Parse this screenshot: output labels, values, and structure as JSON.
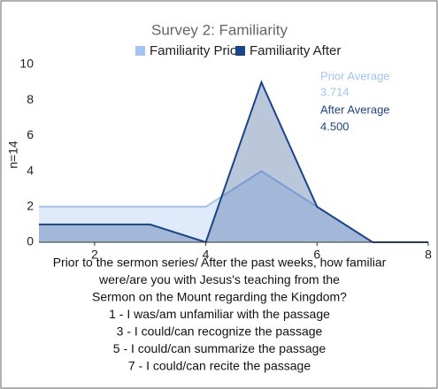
{
  "chart_data": {
    "type": "area",
    "title": "Survey 2: Familiarity",
    "y_label": "n=14",
    "x": [
      1,
      2,
      3,
      4,
      5,
      6,
      7,
      8
    ],
    "series": [
      {
        "name": "Familiarity Prior",
        "color": "#a4c2f4",
        "values": [
          2,
          2,
          2,
          2,
          4,
          2,
          0,
          0
        ]
      },
      {
        "name": "Familiarity After",
        "color": "#1c4587",
        "values": [
          1,
          1,
          1,
          0,
          9,
          2,
          0,
          0
        ]
      }
    ],
    "xlim": [
      1,
      8
    ],
    "xticks": [
      2,
      4,
      6,
      8
    ],
    "ylim": [
      0,
      10
    ],
    "yticks": [
      0,
      2,
      4,
      6,
      8,
      10
    ],
    "grid": false,
    "annotations": [
      {
        "text": "Prior Average",
        "color": "#a4c2f4"
      },
      {
        "text": "3.714",
        "color": "#a4c2f4"
      },
      {
        "text": "After Average",
        "color": "#1c4587"
      },
      {
        "text": "4.500",
        "color": "#1c4587"
      }
    ],
    "caption": [
      "Prior to the sermon series/ After the past weeks, how familiar",
      "were/are you with Jesus's teaching from the",
      "Sermon on the Mount regarding the Kingdom?",
      "1 - I was/am unfamiliar with the passage",
      "3 - I could/can recognize the passage",
      "5 - I could/can summarize the passage",
      "7 - I could/can recite the passage"
    ]
  }
}
